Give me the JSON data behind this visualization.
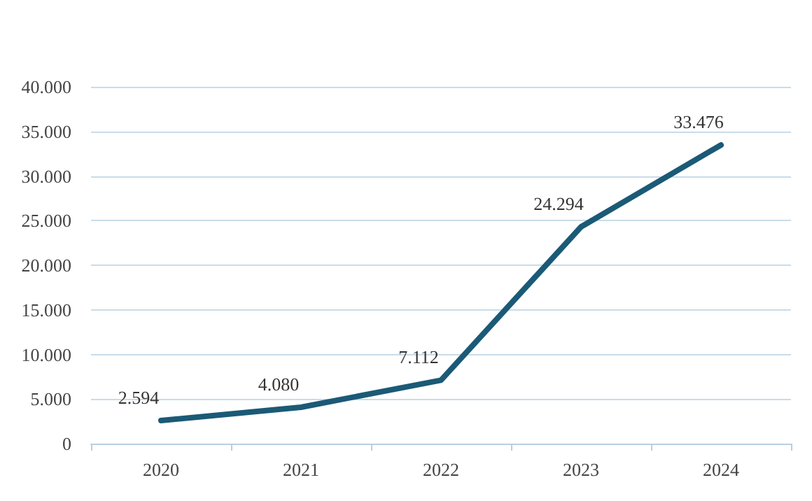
{
  "chart_data": {
    "type": "line",
    "categories": [
      "2020",
      "2021",
      "2022",
      "2023",
      "2024"
    ],
    "series": [
      {
        "color": "#1b5a76",
        "values": [
          2594,
          4080,
          7112,
          24294,
          33476
        ],
        "value_labels": [
          "2.594",
          "4.080",
          "7.112",
          "24.294",
          "33.476"
        ]
      }
    ],
    "ylim": [
      0,
      40000
    ],
    "yticks": [
      {
        "value": 0,
        "label": "0"
      },
      {
        "value": 5000,
        "label": "5.000"
      },
      {
        "value": 10000,
        "label": "10.000"
      },
      {
        "value": 15000,
        "label": "15.000"
      },
      {
        "value": 20000,
        "label": "20.000"
      },
      {
        "value": 25000,
        "label": "25.000"
      },
      {
        "value": 30000,
        "label": "30.000"
      },
      {
        "value": 35000,
        "label": "35.000"
      },
      {
        "value": 40000,
        "label": "40.000"
      }
    ],
    "grid": "y",
    "marker": "none",
    "line_style": "solid"
  }
}
